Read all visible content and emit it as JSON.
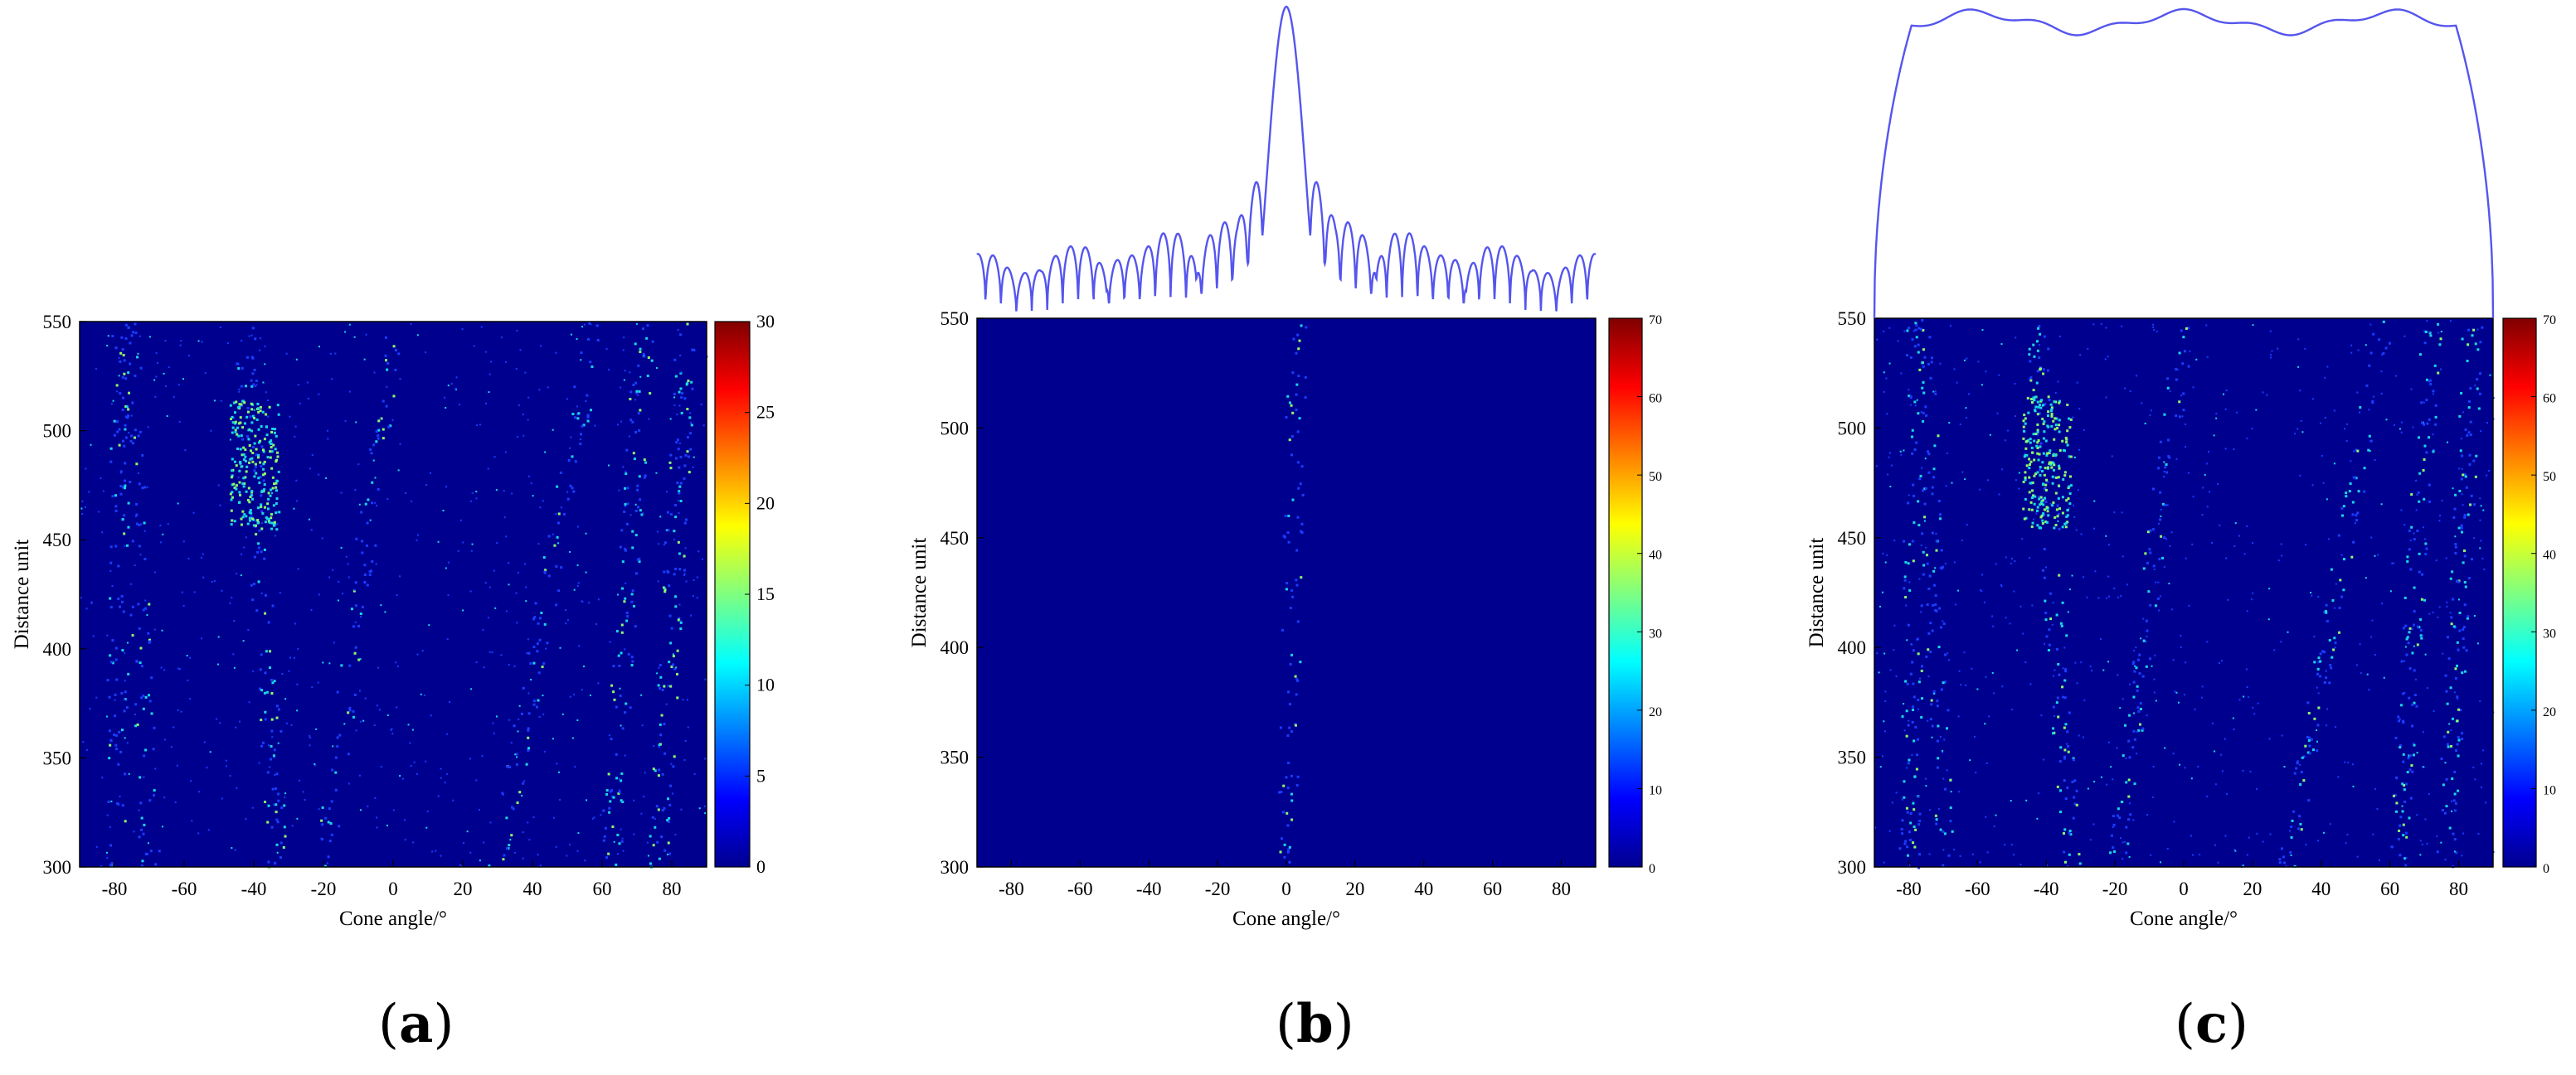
{
  "colors": {
    "background": "#00008f",
    "beam_line": "#5555ee",
    "scatter_low": "#1a3cff",
    "scatter_mid": "#18d8e8",
    "scatter_high": "#8fff6a"
  },
  "chart_data": [
    {
      "type": "heatmap",
      "panel_label": "a",
      "xlabel": "Cone angle/°",
      "ylabel": "Distance unit",
      "xlim": [
        -90,
        90
      ],
      "ylim": [
        300,
        550
      ],
      "x_ticks": [
        "-80",
        "-60",
        "-40",
        "-20",
        "0",
        "20",
        "40",
        "60",
        "80"
      ],
      "x_tick_values": [
        -80,
        -60,
        -40,
        -20,
        0,
        20,
        40,
        60,
        80
      ],
      "y_ticks": [
        "300",
        "350",
        "400",
        "450",
        "500",
        "550"
      ],
      "y_tick_values": [
        300,
        350,
        400,
        450,
        500,
        550
      ],
      "colorbar": {
        "ticks": [
          "0",
          "5",
          "10",
          "15",
          "20",
          "25",
          "30"
        ],
        "tick_values": [
          0,
          5,
          10,
          15,
          20,
          25,
          30
        ],
        "range": [
          0,
          30
        ],
        "colormap": "jet"
      },
      "top_curve": null,
      "scatter_streaks": [
        {
          "x_at_300": -80,
          "x_at_550": -78,
          "intensity": 0.45
        },
        {
          "x_at_300": -70,
          "x_at_550": -76,
          "intensity": 0.35
        },
        {
          "x_at_300": -33,
          "x_at_550": -43,
          "intensity": 0.55
        },
        {
          "x_at_300": -20,
          "x_at_550": 0,
          "intensity": 0.35
        },
        {
          "x_at_300": 30,
          "x_at_550": 58,
          "intensity": 0.4
        },
        {
          "x_at_300": 62,
          "x_at_550": 72,
          "intensity": 0.6
        },
        {
          "x_at_300": 76,
          "x_at_550": 84,
          "intensity": 0.65
        }
      ],
      "hotspot": {
        "x": -40,
        "y": 485,
        "intensity": 0.6
      }
    },
    {
      "type": "heatmap",
      "panel_label": "b",
      "xlabel": "Cone angle/°",
      "ylabel": "Distance unit",
      "xlim": [
        -90,
        90
      ],
      "ylim": [
        300,
        550
      ],
      "x_ticks": [
        "-80",
        "-60",
        "-40",
        "-20",
        "0",
        "20",
        "40",
        "60",
        "80"
      ],
      "x_tick_values": [
        -80,
        -60,
        -40,
        -20,
        0,
        20,
        40,
        60,
        80
      ],
      "y_ticks": [
        "300",
        "350",
        "400",
        "450",
        "500",
        "550"
      ],
      "y_tick_values": [
        300,
        350,
        400,
        450,
        500,
        550
      ],
      "colorbar": {
        "ticks": [
          "0",
          "10",
          "20",
          "30",
          "40",
          "50",
          "60",
          "70"
        ],
        "tick_values": [
          0,
          10,
          20,
          30,
          40,
          50,
          60,
          70
        ],
        "range": [
          0,
          70
        ],
        "colormap": "jet"
      },
      "top_curve": "sinc_beam_pattern",
      "scatter_streaks": [
        {
          "x_at_300": 0,
          "x_at_550": 3,
          "intensity": 0.35
        }
      ],
      "hotspot": null
    },
    {
      "type": "heatmap",
      "panel_label": "c",
      "xlabel": "Cone angle/°",
      "ylabel": "Distance unit",
      "xlim": [
        -90,
        90
      ],
      "ylim": [
        300,
        550
      ],
      "x_ticks": [
        "-80",
        "-60",
        "-40",
        "-20",
        "0",
        "20",
        "40",
        "60",
        "80"
      ],
      "x_tick_values": [
        -80,
        -60,
        -40,
        -20,
        0,
        20,
        40,
        60,
        80
      ],
      "y_ticks": [
        "300",
        "350",
        "400",
        "450",
        "500",
        "550"
      ],
      "y_tick_values": [
        300,
        350,
        400,
        450,
        500,
        550
      ],
      "colorbar": {
        "ticks": [
          "0",
          "10",
          "20",
          "30",
          "40",
          "50",
          "60",
          "70"
        ],
        "tick_values": [
          0,
          10,
          20,
          30,
          40,
          50,
          60,
          70
        ],
        "range": [
          0,
          70
        ],
        "colormap": "jet"
      },
      "top_curve": "flat_top_beam_pattern",
      "scatter_streaks": [
        {
          "x_at_300": -80,
          "x_at_550": -78,
          "intensity": 0.5
        },
        {
          "x_at_300": -70,
          "x_at_550": -76,
          "intensity": 0.45
        },
        {
          "x_at_300": -33,
          "x_at_550": -43,
          "intensity": 0.6
        },
        {
          "x_at_300": -20,
          "x_at_550": 0,
          "intensity": 0.45
        },
        {
          "x_at_300": 30,
          "x_at_550": 58,
          "intensity": 0.5
        },
        {
          "x_at_300": 62,
          "x_at_550": 72,
          "intensity": 0.65
        },
        {
          "x_at_300": 76,
          "x_at_550": 84,
          "intensity": 0.65
        }
      ],
      "hotspot": {
        "x": -40,
        "y": 485,
        "intensity": 0.55
      }
    }
  ]
}
